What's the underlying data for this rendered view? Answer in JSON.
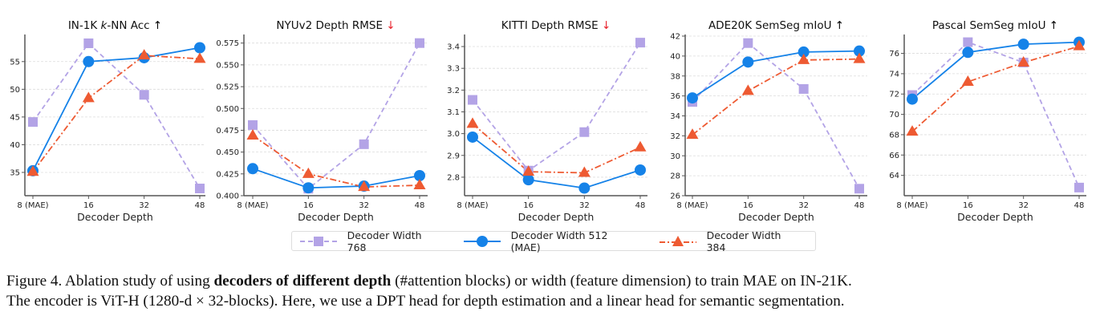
{
  "chart_data": [
    {
      "type": "line",
      "title": "IN-1K k-NN Acc",
      "title_parts": [
        "IN-1K ",
        "k",
        "-NN Acc "
      ],
      "arrow": "↑",
      "arrow_color": "#000000",
      "xlabel": "Decoder Depth",
      "ylabel": "",
      "categories": [
        "8 (MAE)",
        "16",
        "32",
        "48"
      ],
      "yticks": [
        35,
        40,
        45,
        50,
        55
      ],
      "ylim": [
        30.8,
        59.6
      ],
      "grid": true,
      "series": [
        {
          "name": "Decoder Width 768",
          "values": [
            44.1,
            58.3,
            49.0,
            32.1
          ]
        },
        {
          "name": "Decoder Width 512 (MAE)",
          "values": [
            35.3,
            55.0,
            55.7,
            57.5
          ]
        },
        {
          "name": "Decoder Width 384",
          "values": [
            35.1,
            48.4,
            56.1,
            55.5
          ]
        }
      ]
    },
    {
      "type": "line",
      "title": "NYUv2 Depth RMSE",
      "arrow": "↓",
      "arrow_color": "#e8202a",
      "xlabel": "Decoder Depth",
      "ylabel": "",
      "categories": [
        "8 (MAE)",
        "16",
        "32",
        "48"
      ],
      "yticks": [
        0.4,
        0.425,
        0.45,
        0.475,
        0.5,
        0.525,
        0.55,
        0.575
      ],
      "ytick_labels": [
        "0.400",
        "0.425",
        "0.450",
        "0.475",
        "0.500",
        "0.525",
        "0.550",
        "0.575"
      ],
      "ylim": [
        0.4,
        0.583
      ],
      "grid": true,
      "series": [
        {
          "name": "Decoder Width 768",
          "values": [
            0.481,
            0.408,
            0.459,
            0.575
          ]
        },
        {
          "name": "Decoder Width 512 (MAE)",
          "values": [
            0.431,
            0.409,
            0.411,
            0.423
          ]
        },
        {
          "name": "Decoder Width 384",
          "values": [
            0.469,
            0.425,
            0.41,
            0.412
          ]
        }
      ]
    },
    {
      "type": "line",
      "title": "KITTI Depth RMSE",
      "arrow": "↓",
      "arrow_color": "#e8202a",
      "xlabel": "Decoder Depth",
      "ylabel": "",
      "categories": [
        "8 (MAE)",
        "16",
        "32",
        "48"
      ],
      "yticks": [
        2.8,
        2.9,
        3.0,
        3.1,
        3.2,
        3.3,
        3.4
      ],
      "ytick_labels": [
        "2.8",
        "2.9",
        "3.0",
        "3.1",
        "3.2",
        "3.3",
        "3.4"
      ],
      "ylim": [
        2.715,
        3.448
      ],
      "grid": true,
      "series": [
        {
          "name": "Decoder Width 768",
          "values": [
            3.155,
            2.83,
            3.007,
            3.418
          ]
        },
        {
          "name": "Decoder Width 512 (MAE)",
          "values": [
            2.984,
            2.788,
            2.75,
            2.833
          ]
        },
        {
          "name": "Decoder Width 384",
          "values": [
            3.045,
            2.825,
            2.82,
            2.937
          ]
        }
      ]
    },
    {
      "type": "line",
      "title": "ADE20K SemSeg mIoU",
      "arrow": "↑",
      "arrow_color": "#000000",
      "xlabel": "Decoder Depth",
      "ylabel": "",
      "categories": [
        "8 (MAE)",
        "16",
        "32",
        "48"
      ],
      "yticks": [
        26,
        28,
        30,
        32,
        34,
        36,
        38,
        40,
        42
      ],
      "ylim": [
        26,
        42
      ],
      "grid": true,
      "series": [
        {
          "name": "Decoder Width 768",
          "values": [
            35.4,
            41.3,
            36.7,
            26.7
          ]
        },
        {
          "name": "Decoder Width 512 (MAE)",
          "values": [
            35.8,
            39.4,
            40.4,
            40.5
          ]
        },
        {
          "name": "Decoder Width 384",
          "values": [
            32.1,
            36.5,
            39.6,
            39.7
          ]
        }
      ]
    },
    {
      "type": "line",
      "title": "Pascal SemSeg mIoU",
      "arrow": "↑",
      "arrow_color": "#000000",
      "xlabel": "Decoder Depth",
      "ylabel": "",
      "categories": [
        "8 (MAE)",
        "16",
        "32",
        "48"
      ],
      "yticks": [
        64,
        66,
        68,
        70,
        72,
        74,
        76
      ],
      "ylim": [
        62.0,
        77.7
      ],
      "grid": true,
      "series": [
        {
          "name": "Decoder Width 768",
          "values": [
            71.9,
            77.1,
            75.1,
            62.8
          ]
        },
        {
          "name": "Decoder Width 512 (MAE)",
          "values": [
            71.5,
            76.1,
            76.9,
            77.1
          ]
        },
        {
          "name": "Decoder Width 384",
          "values": [
            68.3,
            73.2,
            75.1,
            76.7
          ]
        }
      ]
    }
  ],
  "series_styles": [
    {
      "name": "Decoder Width 768",
      "color": "#b3a3e6",
      "marker": "square",
      "dash": "dashed"
    },
    {
      "name": "Decoder Width 512 (MAE)",
      "color": "#1582e8",
      "marker": "circle",
      "dash": "solid"
    },
    {
      "name": "Decoder Width 384",
      "color": "#ee5a32",
      "marker": "triangle",
      "dash": "dashdot"
    }
  ],
  "legend": {
    "placement": "bottom-center",
    "items": [
      "Decoder Width 768",
      "Decoder Width 512 (MAE)",
      "Decoder Width 384"
    ]
  },
  "caption": {
    "prefix": "Figure 4. Ablation study of using ",
    "bold": "decoders of different depth",
    "line1_rest": " (#attention blocks) or width (feature dimension) to train MAE on IN-21K.",
    "line2": "The encoder is ViT-H (1280-d × 32-blocks). Here, we use a DPT head for depth estimation and a linear head for semantic segmentation."
  }
}
